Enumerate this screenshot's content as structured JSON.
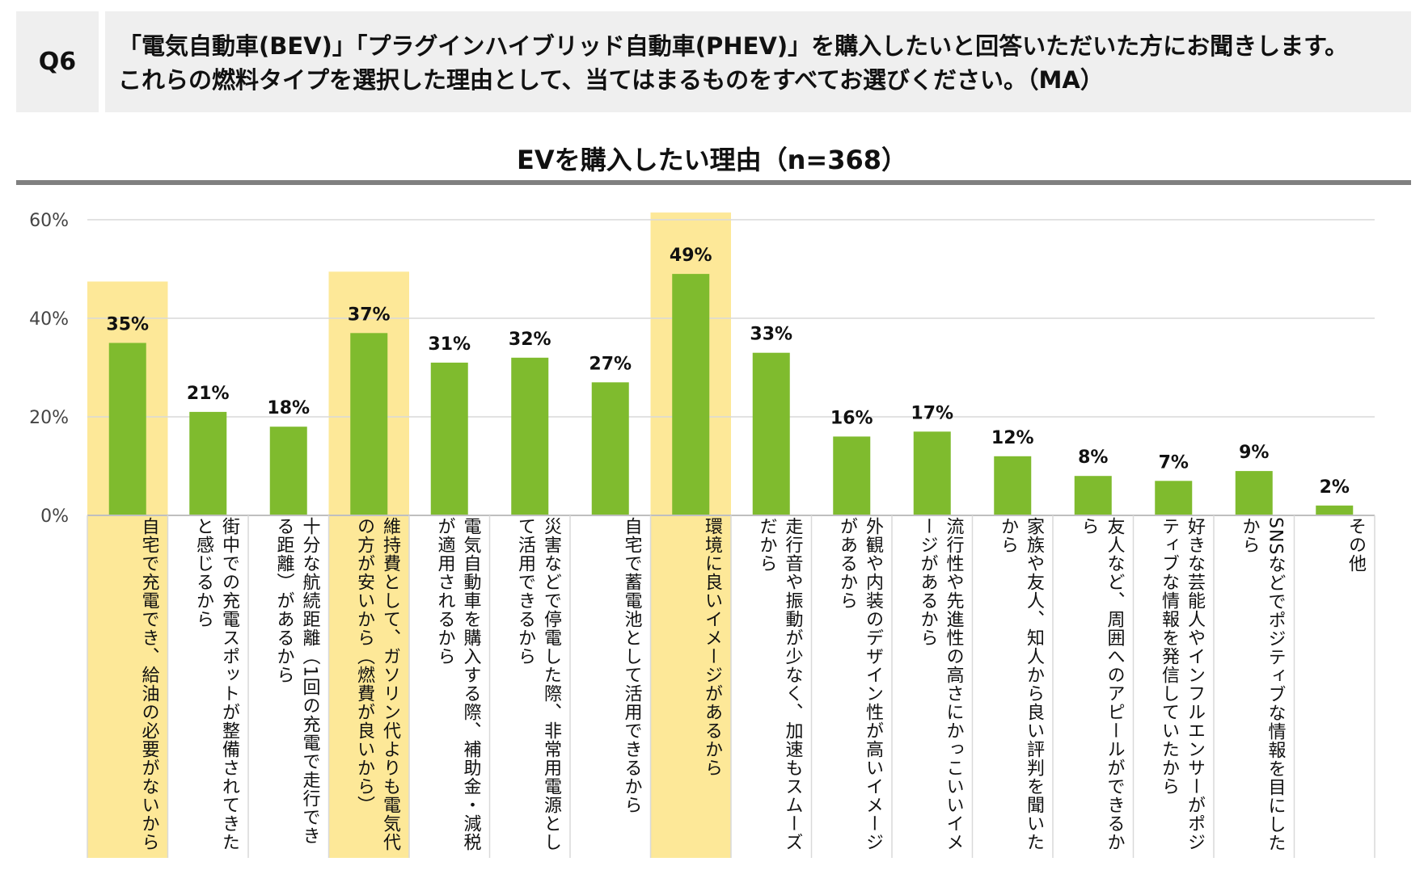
{
  "question": {
    "label": "Q6",
    "line1": "「電気自動車(BEV)」「プラグインハイブリッド自動車(PHEV)」を購入したいと回答いただいた方にお聞きします。",
    "line2": "これらの燃料タイプを選択した理由として、当てはまるものをすべてお選びください。（MA）"
  },
  "colors": {
    "bar": "#7fbb2e",
    "highlight": "#fde898",
    "grid": "#d9d9d9",
    "axis": "#bfbfbf",
    "title_rule": "#808080",
    "question_bg": "#efefef"
  },
  "chart_data": {
    "type": "bar",
    "title": "EVを購入したい理由（n=368）",
    "xlabel": "",
    "ylabel": "",
    "ylim": [
      0,
      60
    ],
    "yticks": [
      "0%",
      "20%",
      "40%",
      "60%"
    ],
    "grid": true,
    "categories": [
      "自宅で充電でき、給油の必要がないから",
      "街中での充電スポットが整備されてきたと感じるから",
      "十分な航続距離（1回の充電で走行できる距離）があるから",
      "維持費として、ガソリン代よりも電気代の方が安いから（燃費が良いから）",
      "電気自動車を購入する際、補助金・減税が適用されるから",
      "災害などで停電した際、非常用電源として活用できるから",
      "自宅で蓄電池として活用できるから",
      "環境に良いイメージがあるから",
      "走行音や振動が少なく、加速もスムーズだから",
      "外観や内装のデザイン性が高いイメージがあるから",
      "流行性や先進性の高さにかっこいいイメージがあるから",
      "家族や友人、知人から良い評判を聞いたから",
      "友人など、周囲へのアピールができるから",
      "好きな芸能人やインフルエンサーがポジティブな情報を発信していたから",
      "SNSなどでポジティブな情報を目にしたから",
      "その他"
    ],
    "values": [
      35,
      21,
      18,
      37,
      31,
      32,
      27,
      49,
      33,
      16,
      17,
      12,
      8,
      7,
      9,
      2
    ],
    "labels": [
      "35%",
      "21%",
      "18%",
      "37%",
      "31%",
      "32%",
      "27%",
      "49%",
      "33%",
      "16%",
      "17%",
      "12%",
      "8%",
      "7%",
      "9%",
      "2%"
    ],
    "highlighted": [
      true,
      false,
      false,
      true,
      false,
      false,
      false,
      true,
      false,
      false,
      false,
      false,
      false,
      false,
      false,
      false
    ]
  }
}
